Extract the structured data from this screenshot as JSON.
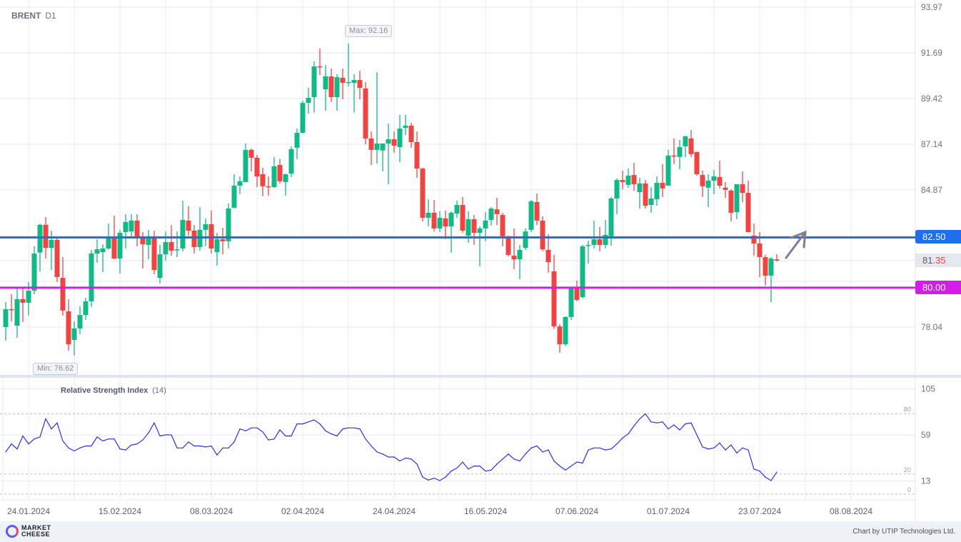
{
  "header": {
    "symbol": "BRENT",
    "timeframe": "D1"
  },
  "annotations": {
    "max_label": "Max: 92.16",
    "min_label": "Min: 76.62"
  },
  "levels": {
    "resistance": {
      "value": 82.5,
      "label": "82.50",
      "color": "#1f6fea"
    },
    "support": {
      "value": 80.0,
      "label": "80.00",
      "color": "#d41ee6"
    },
    "current": {
      "value": 81.35,
      "label_main": "81.",
      "label_tail": "35"
    }
  },
  "rsi_panel": {
    "title": "Relative Strength Index",
    "period": "(14)",
    "levels_label": [
      "80",
      "20",
      "0"
    ]
  },
  "footer": {
    "logo_line1": "MARKET",
    "logo_line2": "CHEESE",
    "credit": "Chart by UTIP Technologies Ltd."
  },
  "colors": {
    "up": "#12b886",
    "down": "#ef4444",
    "rsi": "#2a2ff0",
    "grid": "#e3e8f2"
  },
  "chart_data": [
    {
      "type": "candlestick",
      "title": "BRENT D1",
      "ylim": [
        76.2,
        93.97
      ],
      "yticks": [
        93.97,
        91.69,
        89.42,
        87.14,
        84.87,
        78.04
      ],
      "xticks": [
        {
          "index": 4,
          "label": "24.01.2024"
        },
        {
          "index": 20,
          "label": "15.02.2024"
        },
        {
          "index": 36,
          "label": "08.03.2024"
        },
        {
          "index": 52,
          "label": "02.04.2024"
        },
        {
          "index": 68,
          "label": "24.04.2024"
        },
        {
          "index": 84,
          "label": "16.05.2024"
        },
        {
          "index": 100,
          "label": "07.06.2024"
        },
        {
          "index": 116,
          "label": "01.07.2024"
        },
        {
          "index": 132,
          "label": "23.07.2024"
        },
        {
          "index": 148,
          "label": "08.08.2024"
        }
      ],
      "ohlc": [
        [
          78.04,
          79.28,
          77.36,
          78.93
        ],
        [
          78.93,
          79.67,
          78.32,
          78.9
        ],
        [
          78.11,
          79.99,
          77.5,
          79.43
        ],
        [
          79.43,
          79.99,
          78.29,
          79.25
        ],
        [
          79.25,
          80.28,
          78.61,
          79.85
        ],
        [
          79.85,
          82.06,
          79.67,
          81.7
        ],
        [
          81.75,
          83.19,
          80.81,
          83.13
        ],
        [
          83.13,
          83.52,
          81.45,
          81.98
        ],
        [
          81.98,
          82.84,
          80.88,
          82.38
        ],
        [
          82.38,
          82.48,
          80.28,
          80.53
        ],
        [
          80.49,
          81.52,
          78.61,
          78.86
        ],
        [
          78.82,
          79.42,
          76.86,
          77.18
        ],
        [
          77.4,
          78.32,
          76.62,
          77.97
        ],
        [
          77.97,
          79.07,
          77.68,
          78.64
        ],
        [
          78.64,
          79.5,
          78.39,
          79.32
        ],
        [
          79.32,
          81.88,
          79.04,
          81.7
        ],
        [
          81.7,
          82.41,
          81.24,
          81.91
        ],
        [
          81.77,
          82.16,
          80.78,
          81.95
        ],
        [
          81.95,
          83.19,
          81.88,
          82.49
        ],
        [
          82.49,
          83.59,
          81.42,
          81.45
        ],
        [
          81.45,
          82.87,
          80.71,
          82.73
        ],
        [
          82.77,
          83.66,
          81.95,
          83.27
        ],
        [
          82.8,
          83.66,
          82.52,
          83.34
        ],
        [
          83.34,
          83.66,
          82.06,
          82.52
        ],
        [
          82.52,
          82.77,
          80.95,
          82.16
        ],
        [
          82.13,
          82.87,
          81.42,
          82.49
        ],
        [
          82.49,
          82.84,
          80.67,
          80.88
        ],
        [
          80.49,
          82.13,
          80.21,
          81.66
        ],
        [
          81.66,
          82.8,
          81.35,
          82.27
        ],
        [
          82.27,
          83.12,
          81.59,
          81.84
        ],
        [
          81.88,
          82.8,
          81.52,
          81.91
        ],
        [
          81.95,
          84.33,
          81.81,
          83.37
        ],
        [
          83.34,
          84.05,
          82.59,
          82.84
        ],
        [
          82.84,
          83.12,
          81.7,
          82.02
        ],
        [
          82.02,
          84.01,
          81.84,
          82.88
        ],
        [
          82.88,
          83.44,
          82.06,
          83.16
        ],
        [
          83.16,
          83.84,
          81.7,
          81.95
        ],
        [
          81.77,
          82.73,
          81.1,
          82.41
        ],
        [
          82.41,
          82.98,
          81.66,
          82.31
        ],
        [
          82.31,
          84.19,
          81.95,
          83.94
        ],
        [
          83.98,
          85.65,
          83.94,
          85.08
        ],
        [
          85.08,
          85.54,
          84.65,
          85.3
        ],
        [
          85.26,
          87.18,
          85.26,
          86.86
        ],
        [
          86.86,
          86.93,
          85.79,
          86.47
        ],
        [
          86.47,
          86.61,
          85.01,
          85.54
        ],
        [
          85.65,
          85.97,
          84.55,
          85.05
        ],
        [
          85.05,
          85.54,
          84.58,
          85.01
        ],
        [
          85.01,
          86.5,
          84.97,
          86.04
        ],
        [
          86.11,
          86.4,
          85.19,
          85.3
        ],
        [
          85.26,
          85.68,
          84.58,
          85.65
        ],
        [
          85.68,
          87.04,
          85.51,
          86.9
        ],
        [
          86.97,
          87.92,
          86.4,
          87.71
        ],
        [
          87.71,
          89.32,
          87.68,
          89.2
        ],
        [
          89.2,
          89.96,
          88.67,
          89.45
        ],
        [
          89.49,
          91.27,
          88.72,
          91.02
        ],
        [
          91.02,
          91.92,
          90.59,
          90.98
        ],
        [
          89.88,
          91.09,
          88.81,
          90.52
        ],
        [
          90.52,
          90.91,
          89.25,
          89.49
        ],
        [
          89.49,
          90.63,
          88.81,
          90.48
        ],
        [
          90.45,
          90.91,
          89.38,
          90.2
        ],
        [
          90.2,
          92.16,
          90.02,
          90.24
        ],
        [
          90.2,
          90.63,
          88.72,
          90.34
        ],
        [
          90.34,
          90.8,
          89.38,
          89.95
        ],
        [
          89.92,
          90.24,
          87.14,
          87.43
        ],
        [
          87.43,
          87.78,
          86.11,
          86.86
        ],
        [
          86.86,
          90.73,
          86.18,
          87.18
        ],
        [
          86.83,
          87.18,
          85.79,
          87.18
        ],
        [
          87.18,
          88.17,
          85.15,
          87.39
        ],
        [
          87.39,
          87.78,
          86.72,
          87.07
        ],
        [
          87.0,
          88.6,
          86.25,
          87.92
        ],
        [
          87.96,
          88.6,
          87.6,
          88.07
        ],
        [
          88.07,
          88.21,
          86.97,
          87.25
        ],
        [
          87.25,
          87.78,
          85.47,
          85.93
        ],
        [
          85.93,
          85.97,
          83.3,
          83.48
        ],
        [
          83.48,
          84.4,
          83.05,
          83.73
        ],
        [
          83.73,
          84.37,
          82.8,
          82.95
        ],
        [
          82.95,
          83.8,
          82.77,
          83.48
        ],
        [
          83.45,
          83.84,
          82.41,
          83.05
        ],
        [
          83.05,
          83.8,
          81.74,
          83.73
        ],
        [
          83.69,
          84.33,
          83.48,
          84.12
        ],
        [
          84.12,
          84.51,
          82.73,
          82.84
        ],
        [
          82.59,
          83.8,
          82.23,
          83.41
        ],
        [
          83.41,
          83.62,
          82.13,
          82.73
        ],
        [
          82.73,
          83.05,
          81.06,
          82.95
        ],
        [
          82.95,
          83.76,
          82.31,
          83.34
        ],
        [
          83.37,
          84.01,
          83.09,
          83.94
        ],
        [
          83.9,
          84.47,
          83.12,
          83.66
        ],
        [
          83.62,
          83.73,
          82.06,
          82.56
        ],
        [
          82.56,
          82.59,
          81.56,
          81.63
        ],
        [
          81.59,
          82.95,
          80.92,
          81.41
        ],
        [
          81.41,
          82.13,
          80.42,
          81.88
        ],
        [
          81.98,
          82.95,
          81.88,
          82.8
        ],
        [
          82.88,
          84.37,
          82.77,
          84.3
        ],
        [
          84.26,
          84.69,
          83.12,
          83.34
        ],
        [
          83.34,
          83.55,
          81.81,
          81.91
        ],
        [
          81.88,
          82.66,
          80.74,
          81.27
        ],
        [
          80.81,
          81.63,
          77.95,
          78.07
        ],
        [
          78.07,
          78.18,
          76.76,
          77.18
        ],
        [
          77.18,
          78.57,
          77.08,
          78.54
        ],
        [
          78.54,
          80.03,
          78.39,
          80.0
        ],
        [
          80.0,
          80.35,
          79.32,
          79.39
        ],
        [
          79.53,
          82.13,
          79.46,
          82.06
        ],
        [
          82.09,
          82.34,
          81.2,
          82.13
        ],
        [
          82.13,
          83.34,
          81.95,
          82.41
        ],
        [
          82.41,
          83.02,
          81.81,
          82.13
        ],
        [
          82.13,
          83.37,
          81.95,
          82.63
        ],
        [
          82.56,
          84.51,
          82.09,
          84.44
        ],
        [
          84.44,
          85.44,
          83.66,
          85.36
        ],
        [
          85.36,
          85.83,
          84.9,
          85.26
        ],
        [
          85.12,
          85.93,
          84.97,
          85.58
        ],
        [
          85.61,
          86.22,
          84.83,
          85.15
        ],
        [
          84.76,
          85.47,
          83.94,
          85.19
        ],
        [
          85.19,
          85.36,
          83.94,
          84.08
        ],
        [
          84.12,
          85.01,
          83.73,
          84.44
        ],
        [
          84.4,
          85.54,
          84.08,
          85.22
        ],
        [
          85.22,
          86.15,
          84.51,
          84.94
        ],
        [
          85.08,
          86.86,
          85.08,
          86.58
        ],
        [
          86.58,
          87.43,
          86.15,
          86.54
        ],
        [
          86.51,
          87.36,
          85.9,
          87.0
        ],
        [
          87.04,
          87.57,
          86.5,
          87.54
        ],
        [
          87.43,
          87.85,
          86.5,
          86.65
        ],
        [
          86.76,
          86.76,
          85.58,
          85.65
        ],
        [
          85.61,
          85.83,
          84.51,
          85.05
        ],
        [
          84.98,
          85.65,
          84.01,
          85.33
        ],
        [
          85.33,
          85.86,
          84.65,
          85.54
        ],
        [
          85.51,
          86.32,
          84.94,
          85.08
        ],
        [
          84.98,
          85.26,
          84.48,
          84.87
        ],
        [
          84.83,
          84.9,
          83.3,
          83.73
        ],
        [
          83.76,
          85.15,
          83.41,
          85.15
        ],
        [
          85.15,
          85.79,
          84.26,
          84.72
        ],
        [
          84.72,
          85.33,
          82.77,
          82.77
        ],
        [
          82.59,
          83.19,
          81.59,
          82.2
        ],
        [
          82.2,
          82.77,
          80.53,
          81.52
        ],
        [
          81.52,
          81.63,
          80.1,
          80.6
        ],
        [
          80.6,
          81.52,
          79.28,
          81.45
        ],
        [
          81.41,
          81.67,
          81.31,
          81.35
        ]
      ]
    },
    {
      "type": "line",
      "title": "Relative Strength Index (14)",
      "ylim": [
        0,
        105
      ],
      "yticks": [
        105,
        59,
        13
      ],
      "levels": [
        80,
        20,
        0
      ],
      "values": [
        42,
        50,
        45,
        58,
        50,
        55,
        57,
        75,
        65,
        71,
        53,
        46,
        43,
        46,
        48,
        48,
        57,
        53,
        55,
        55,
        45,
        44,
        49,
        50,
        54,
        61,
        71,
        58,
        59,
        59,
        46,
        46,
        52,
        48,
        48,
        47,
        48,
        39,
        46,
        46,
        52,
        65,
        63,
        66,
        66,
        62,
        54,
        55,
        64,
        58,
        58,
        70,
        70,
        72,
        74,
        70,
        63,
        60,
        58,
        65,
        66,
        66,
        65,
        55,
        48,
        42,
        40,
        37,
        37,
        33,
        36,
        35,
        30,
        17,
        14,
        16,
        13.5,
        17,
        23,
        26,
        32,
        25,
        28,
        28,
        23,
        24,
        30,
        35,
        40,
        35,
        33,
        40,
        46,
        48,
        42,
        44,
        33,
        28,
        24,
        28,
        32,
        31,
        44,
        46,
        46,
        44,
        45,
        50,
        56,
        60,
        68,
        75,
        80,
        72,
        71,
        72,
        65,
        69,
        64,
        70,
        71,
        59,
        47,
        45,
        46,
        51,
        44,
        49,
        41,
        46,
        44,
        25,
        23,
        17,
        13.5,
        22
      ]
    }
  ]
}
